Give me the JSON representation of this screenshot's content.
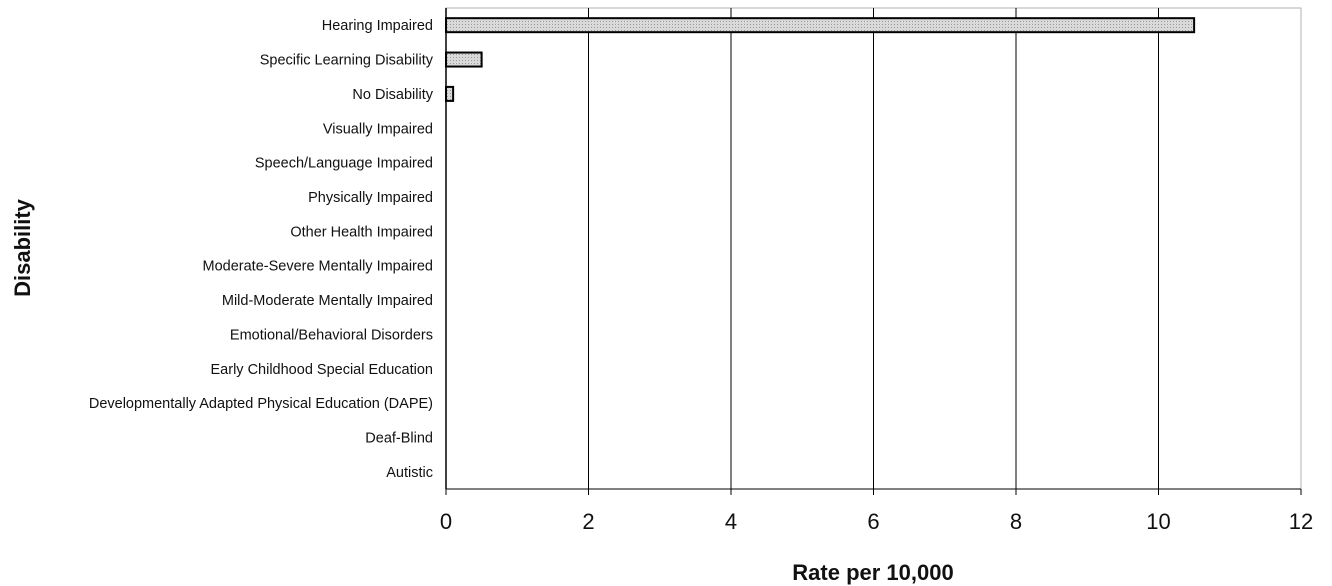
{
  "chart_data": {
    "type": "bar",
    "orientation": "horizontal",
    "title": "",
    "xlabel": "Rate per 10,000",
    "ylabel": "Disability",
    "xlim": [
      0,
      12
    ],
    "xticks": [
      "0",
      "2",
      "4",
      "6",
      "8",
      "10",
      "12"
    ],
    "grid": "vertical",
    "legend": "none",
    "bar_color": "#d6d6d6",
    "categories": [
      "Hearing Impaired",
      "Specific Learning Disability",
      "No Disability",
      "Visually Impaired",
      "Speech/Language Impaired",
      "Physically Impaired",
      "Other Health Impaired",
      "Moderate-Severe Mentally Impaired",
      "Mild-Moderate Mentally Impaired",
      "Emotional/Behavioral Disorders",
      "Early Childhood Special Education",
      "Developmentally Adapted Physical Education (DAPE)",
      "Deaf-Blind",
      "Autistic"
    ],
    "values": [
      10.5,
      0.5,
      0.1,
      0,
      0,
      0,
      0,
      0,
      0,
      0,
      0,
      0,
      0,
      0
    ]
  }
}
